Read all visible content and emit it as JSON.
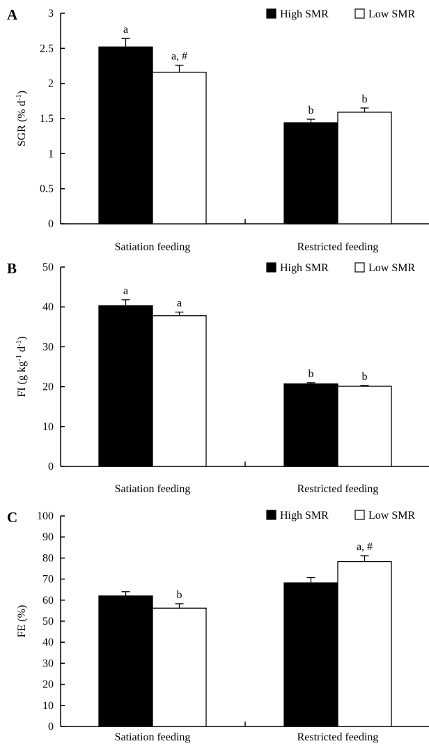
{
  "chart_data": [
    {
      "type": "bar",
      "panel": "A",
      "categories": [
        "Satiation feeding",
        "Restricted feeding"
      ],
      "ylabel": {
        "main": "SGR (% d",
        "sup": "-1",
        "end": ")"
      },
      "ylim": [
        0,
        3
      ],
      "yticks": [
        "0",
        "0.5",
        "1",
        "1.5",
        "2",
        "2.5",
        "3"
      ],
      "legend": {
        "placement": "top-right",
        "items": [
          "High SMR",
          "Low SMR"
        ]
      },
      "series": [
        {
          "name": "High SMR",
          "color": "#000000",
          "values": [
            2.52,
            1.44
          ],
          "errors": [
            0.12,
            0.05
          ],
          "labels": [
            "a",
            "b"
          ]
        },
        {
          "name": "Low SMR",
          "color": "#ffffff",
          "values": [
            2.16,
            1.59
          ],
          "errors": [
            0.1,
            0.06
          ],
          "labels": [
            "a, #",
            "b"
          ]
        }
      ]
    },
    {
      "type": "bar",
      "panel": "B",
      "categories": [
        "Satiation feeding",
        "Restricted feeding"
      ],
      "ylabel": {
        "main": "FI (g kg",
        "sup": "-1",
        "mid": " d",
        "sup2": "-1",
        "end": ")"
      },
      "ylim": [
        0,
        50
      ],
      "yticks": [
        "0",
        "10",
        "20",
        "30",
        "40",
        "50"
      ],
      "legend": {
        "placement": "top-right",
        "items": [
          "High SMR",
          "Low SMR"
        ]
      },
      "series": [
        {
          "name": "High SMR",
          "color": "#000000",
          "values": [
            40.3,
            20.7
          ],
          "errors": [
            1.5,
            0.3
          ],
          "labels": [
            "a",
            "b"
          ]
        },
        {
          "name": "Low SMR",
          "color": "#ffffff",
          "values": [
            37.8,
            20.1
          ],
          "errors": [
            0.9,
            0.2
          ],
          "labels": [
            "a",
            "b"
          ]
        }
      ]
    },
    {
      "type": "bar",
      "panel": "C",
      "categories": [
        "Satiation feeding",
        "Restricted feeding"
      ],
      "ylabel": {
        "main": "FE (%)"
      },
      "ylim": [
        0,
        100
      ],
      "yticks": [
        "0",
        "10",
        "20",
        "30",
        "40",
        "50",
        "60",
        "70",
        "80",
        "90",
        "100"
      ],
      "legend": {
        "placement": "top-right",
        "items": [
          "High SMR",
          "Low SMR"
        ]
      },
      "series": [
        {
          "name": "High SMR",
          "color": "#000000",
          "values": [
            62,
            68.2
          ],
          "errors": [
            2,
            2.5
          ],
          "labels": [
            "",
            ""
          ]
        },
        {
          "name": "Low SMR",
          "color": "#ffffff",
          "values": [
            56.2,
            78.3
          ],
          "errors": [
            2.1,
            2.8
          ],
          "labels": [
            "b",
            "a, #"
          ]
        }
      ]
    }
  ]
}
